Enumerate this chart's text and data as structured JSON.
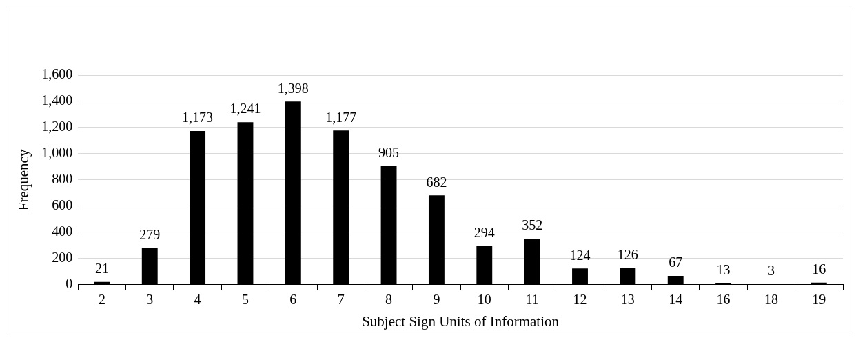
{
  "chart_data": {
    "type": "bar",
    "xlabel": "Subject Sign Units of Information",
    "ylabel": "Frequency",
    "categories": [
      "2",
      "3",
      "4",
      "5",
      "6",
      "7",
      "8",
      "9",
      "10",
      "11",
      "12",
      "13",
      "14",
      "16",
      "18",
      "19"
    ],
    "values": [
      21,
      279,
      1173,
      1241,
      1398,
      1177,
      905,
      682,
      294,
      352,
      124,
      126,
      67,
      13,
      3,
      16
    ],
    "value_labels": [
      "21",
      "279",
      "1,173",
      "1,241",
      "1,398",
      "1,177",
      "905",
      "682",
      "294",
      "352",
      "124",
      "126",
      "67",
      "13",
      "3",
      "16"
    ],
    "color": "#000000",
    "ylim": [
      0,
      1600
    ],
    "yticks": [
      0,
      200,
      400,
      600,
      800,
      {
        "value": 1000,
        "label": "1,000"
      },
      {
        "value": 1200,
        "label": "1,200"
      },
      {
        "value": 1400,
        "label": "1,400"
      },
      {
        "value": 1600,
        "label": "1,600"
      }
    ],
    "grid": "y",
    "legend": false
  }
}
